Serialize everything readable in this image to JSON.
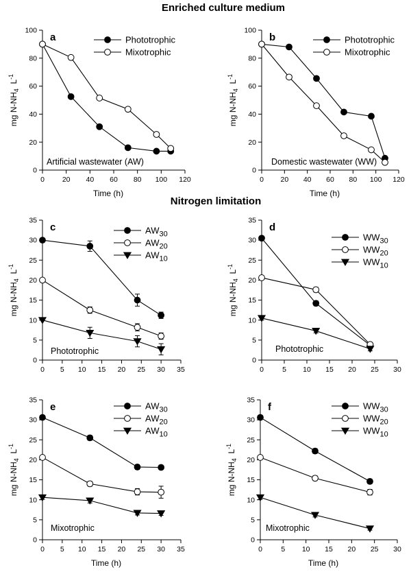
{
  "section_titles": [
    "Enriched culture medium",
    "Nitrogen limitation"
  ],
  "ylabel": {
    "main": "mg N-NH",
    "sub": "4",
    "unit": "L",
    "sup": "-1"
  },
  "chart_data": [
    {
      "type": "line",
      "panel": "a",
      "xlabel": "Time (h)",
      "xlim": [
        0,
        120
      ],
      "xticks": [
        0,
        20,
        40,
        60,
        80,
        100,
        120
      ],
      "ylim": [
        0,
        100
      ],
      "yticks": [
        0,
        20,
        40,
        60,
        80,
        100
      ],
      "annotation": "Artificial wastewater (AW)",
      "legend_position": "top-right",
      "series": [
        {
          "name": "Phototrophic",
          "marker": "filled-circle",
          "x": [
            0,
            24,
            48,
            72,
            96,
            108
          ],
          "y": [
            90,
            52.5,
            31,
            16,
            13.5,
            13.5
          ],
          "err": [
            0,
            1,
            1,
            1.2,
            1,
            1.5
          ]
        },
        {
          "name": "Mixotrophic",
          "marker": "open-circle",
          "x": [
            0,
            24,
            48,
            72,
            96,
            108
          ],
          "y": [
            90,
            80.5,
            51.5,
            43.5,
            25.5,
            15.5
          ],
          "err": [
            0,
            1,
            1,
            1,
            1,
            1
          ]
        }
      ]
    },
    {
      "type": "line",
      "panel": "b",
      "xlabel": "Time (h)",
      "xlim": [
        0,
        120
      ],
      "xticks": [
        0,
        20,
        40,
        60,
        80,
        100,
        120
      ],
      "ylim": [
        0,
        100
      ],
      "yticks": [
        0,
        20,
        40,
        60,
        80,
        100
      ],
      "annotation": "Domestic wastewater (WW)",
      "legend_position": "top-right",
      "series": [
        {
          "name": "Phototrophic",
          "marker": "filled-circle",
          "x": [
            0,
            24,
            48,
            72,
            96,
            108
          ],
          "y": [
            90,
            88,
            65.5,
            41.5,
            38.5,
            8.5
          ],
          "err": [
            0,
            1,
            1,
            1,
            1.5,
            1
          ]
        },
        {
          "name": "Mixotrophic",
          "marker": "open-circle",
          "x": [
            0,
            24,
            48,
            72,
            96,
            108
          ],
          "y": [
            90,
            66.5,
            46,
            24.5,
            14.5,
            5.5
          ],
          "err": [
            0,
            1,
            1,
            1,
            1,
            1
          ]
        }
      ]
    },
    {
      "type": "line",
      "panel": "c",
      "xlabel": "",
      "xlim": [
        0,
        35
      ],
      "xticks": [
        0,
        5,
        10,
        15,
        20,
        25,
        30,
        35
      ],
      "ylim": [
        0,
        35
      ],
      "yticks": [
        0,
        5,
        10,
        15,
        20,
        25,
        30,
        35
      ],
      "annotation": "Phototrophic",
      "legend_position": "top-right",
      "series": [
        {
          "name": "AW",
          "name_sub": "30",
          "marker": "filled-circle",
          "x": [
            0,
            12,
            24,
            30
          ],
          "y": [
            30,
            28.5,
            15,
            11.2
          ],
          "err": [
            0,
            1.3,
            1.5,
            0.8
          ]
        },
        {
          "name": "AW",
          "name_sub": "20",
          "marker": "open-circle",
          "x": [
            0,
            12,
            24,
            30
          ],
          "y": [
            20,
            12.5,
            8.2,
            6
          ],
          "err": [
            0,
            0.8,
            0.9,
            0.8
          ]
        },
        {
          "name": "AW",
          "name_sub": "10",
          "marker": "triangle-down",
          "x": [
            0,
            12,
            24,
            30
          ],
          "y": [
            10,
            6.8,
            4.7,
            2.7
          ],
          "err": [
            0,
            1.4,
            1.4,
            1.4
          ]
        }
      ]
    },
    {
      "type": "line",
      "panel": "d",
      "xlabel": "",
      "xlim": [
        0,
        30
      ],
      "xticks": [
        0,
        5,
        10,
        15,
        20,
        25,
        30
      ],
      "ylim": [
        0,
        35
      ],
      "yticks": [
        0,
        5,
        10,
        15,
        20,
        25,
        30,
        35
      ],
      "annotation": "Phototrophic",
      "legend_position": "top-right",
      "series": [
        {
          "name": "WW",
          "name_sub": "30",
          "marker": "filled-circle",
          "x": [
            0,
            12,
            24
          ],
          "y": [
            30.5,
            14.2,
            3.7
          ],
          "err": [
            0.5,
            0.6,
            0.5
          ]
        },
        {
          "name": "WW",
          "name_sub": "20",
          "marker": "open-circle",
          "x": [
            0,
            12,
            24
          ],
          "y": [
            20.6,
            17.6,
            3.9
          ],
          "err": [
            0.5,
            0.6,
            0.5
          ]
        },
        {
          "name": "WW",
          "name_sub": "10",
          "marker": "triangle-down",
          "x": [
            0,
            12,
            24
          ],
          "y": [
            10.5,
            7.3,
            2.8
          ],
          "err": [
            0.5,
            0.5,
            0.5
          ]
        }
      ]
    },
    {
      "type": "line",
      "panel": "e",
      "xlabel": "Time (h)",
      "xlim": [
        0,
        35
      ],
      "xticks": [
        0,
        5,
        10,
        15,
        20,
        25,
        30,
        35
      ],
      "ylim": [
        0,
        35
      ],
      "yticks": [
        0,
        5,
        10,
        15,
        20,
        25,
        30,
        35
      ],
      "annotation": "Mixotrophic",
      "legend_position": "top-right",
      "series": [
        {
          "name": "AW",
          "name_sub": "30",
          "marker": "filled-circle",
          "x": [
            0,
            12,
            24,
            30
          ],
          "y": [
            30.6,
            25.5,
            18.2,
            18.1
          ],
          "err": [
            0.5,
            0.6,
            0.6,
            0.5
          ]
        },
        {
          "name": "AW",
          "name_sub": "20",
          "marker": "open-circle",
          "x": [
            0,
            12,
            24,
            30
          ],
          "y": [
            20.6,
            14,
            12,
            11.9
          ],
          "err": [
            0.5,
            0.6,
            0.8,
            1.5
          ]
        },
        {
          "name": "AW",
          "name_sub": "10",
          "marker": "triangle-down",
          "x": [
            0,
            12,
            24,
            30
          ],
          "y": [
            10.6,
            9.8,
            6.7,
            6.6
          ],
          "err": [
            0.5,
            0.6,
            0.5,
            0.5
          ]
        }
      ]
    },
    {
      "type": "line",
      "panel": "f",
      "xlabel": "Time (h)",
      "xlim": [
        0,
        30
      ],
      "xticks": [
        0,
        5,
        10,
        15,
        20,
        25,
        30
      ],
      "ylim": [
        0,
        35
      ],
      "yticks": [
        0,
        5,
        10,
        15,
        20,
        25,
        30,
        35
      ],
      "annotation": "Mixotrophic",
      "legend_position": "top-right",
      "series": [
        {
          "name": "WW",
          "name_sub": "30",
          "marker": "filled-circle",
          "x": [
            0,
            12,
            24
          ],
          "y": [
            30.6,
            22.2,
            14.6
          ],
          "err": [
            0.5,
            0.6,
            0.6
          ]
        },
        {
          "name": "WW",
          "name_sub": "20",
          "marker": "open-circle",
          "x": [
            0,
            12,
            24
          ],
          "y": [
            20.6,
            15.4,
            11.9
          ],
          "err": [
            0.5,
            0.6,
            0.7
          ]
        },
        {
          "name": "WW",
          "name_sub": "10",
          "marker": "triangle-down",
          "x": [
            0,
            12,
            24
          ],
          "y": [
            10.6,
            6.2,
            2.8
          ],
          "err": [
            0.5,
            0.5,
            0.4
          ]
        }
      ]
    }
  ]
}
